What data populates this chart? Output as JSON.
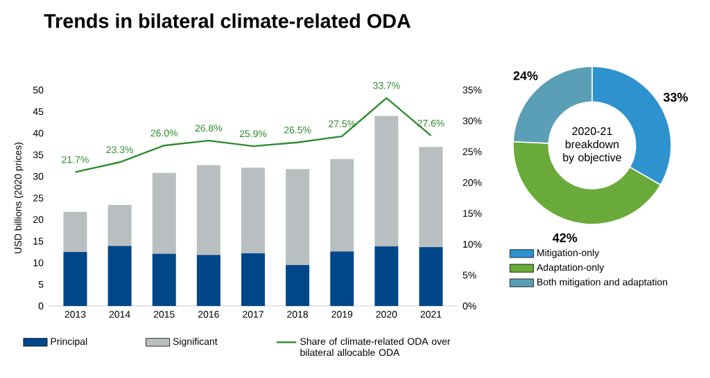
{
  "chart_data": [
    {
      "type": "bar",
      "title": "Trends in bilateral climate-related ODA",
      "ylabel": "USD billions (2020 prices)",
      "stacked": true,
      "legend": "bottom",
      "categories": [
        "2013",
        "2014",
        "2015",
        "2016",
        "2017",
        "2018",
        "2019",
        "2020",
        "2021"
      ],
      "series": [
        {
          "name": "Principal",
          "color": "#00478a",
          "values": [
            12.5,
            13.9,
            12.1,
            11.8,
            12.2,
            9.5,
            12.6,
            13.8,
            13.6
          ]
        },
        {
          "name": "Significant",
          "color": "#b9bfc1",
          "values": [
            9.3,
            9.5,
            18.7,
            20.8,
            19.8,
            22.2,
            21.4,
            30.2,
            23.2
          ]
        },
        {
          "name": "Share of climate-related ODA over bilateral allocable ODA",
          "type": "line",
          "axis": "y2",
          "color": "#2e8b2e",
          "values": [
            21.7,
            23.3,
            26.0,
            26.8,
            25.9,
            26.5,
            27.5,
            33.7,
            27.6
          ],
          "value_labels": [
            "21.7%",
            "23.3%",
            "26.0%",
            "26.8%",
            "25.9%",
            "26.5%",
            "27.5%",
            "33.7%",
            "27.6%"
          ]
        }
      ],
      "ylim": [
        0,
        50
      ],
      "yticks": [
        0,
        5,
        10,
        15,
        20,
        25,
        30,
        35,
        40,
        45,
        50
      ],
      "y2lim": [
        0,
        35
      ],
      "y2ticks": [
        {
          "value": 0,
          "label": "0%"
        },
        {
          "value": 5,
          "label": "5%"
        },
        {
          "value": 10,
          "label": "10%"
        },
        {
          "value": 15,
          "label": "15%"
        },
        {
          "value": 20,
          "label": "20%"
        },
        {
          "value": 25,
          "label": "25%"
        },
        {
          "value": 30,
          "label": "30%"
        },
        {
          "value": 35,
          "label": "35%"
        }
      ]
    },
    {
      "type": "donut",
      "title": "2020-21 breakdown by objective",
      "legend": "bottom",
      "categories": [
        "Mitigation-only",
        "Adaptation-only",
        "Both mitigation and adaptation"
      ],
      "values": [
        33,
        42,
        24
      ],
      "colors": [
        "#2e92cf",
        "#6aaa3a",
        "#5a9fb5"
      ],
      "value_labels": [
        "33%",
        "42%",
        "24%"
      ]
    }
  ]
}
